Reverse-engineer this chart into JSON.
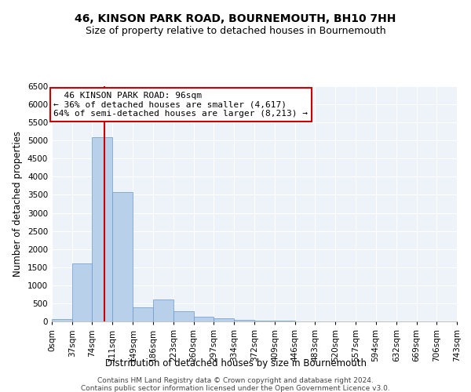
{
  "title": "46, KINSON PARK ROAD, BOURNEMOUTH, BH10 7HH",
  "subtitle": "Size of property relative to detached houses in Bournemouth",
  "xlabel": "Distribution of detached houses by size in Bournemouth",
  "ylabel": "Number of detached properties",
  "footer_line1": "Contains HM Land Registry data © Crown copyright and database right 2024.",
  "footer_line2": "Contains public sector information licensed under the Open Government Licence v3.0.",
  "annotation_title": "46 KINSON PARK ROAD: 96sqm",
  "annotation_line2": "← 36% of detached houses are smaller (4,617)",
  "annotation_line3": "64% of semi-detached houses are larger (8,213) →",
  "bin_edges": [
    0,
    37,
    74,
    111,
    149,
    186,
    223,
    260,
    297,
    334,
    372,
    409,
    446,
    483,
    520,
    557,
    594,
    632,
    669,
    706,
    743
  ],
  "bar_heights": [
    55,
    1600,
    5100,
    3580,
    400,
    600,
    280,
    130,
    85,
    45,
    25,
    15,
    8,
    4,
    2,
    1,
    1,
    1,
    1,
    1
  ],
  "bar_color": "#b8d0ea",
  "bar_edge_color": "#6699cc",
  "vline_color": "#cc0000",
  "vline_x": 96,
  "ylim": [
    0,
    6500
  ],
  "yticks": [
    0,
    500,
    1000,
    1500,
    2000,
    2500,
    3000,
    3500,
    4000,
    4500,
    5000,
    5500,
    6000,
    6500
  ],
  "background_color": "#eef2f9",
  "grid_color": "#ffffff",
  "title_fontsize": 10,
  "subtitle_fontsize": 9,
  "axis_label_fontsize": 8.5,
  "tick_fontsize": 7.5,
  "footer_fontsize": 6.5
}
